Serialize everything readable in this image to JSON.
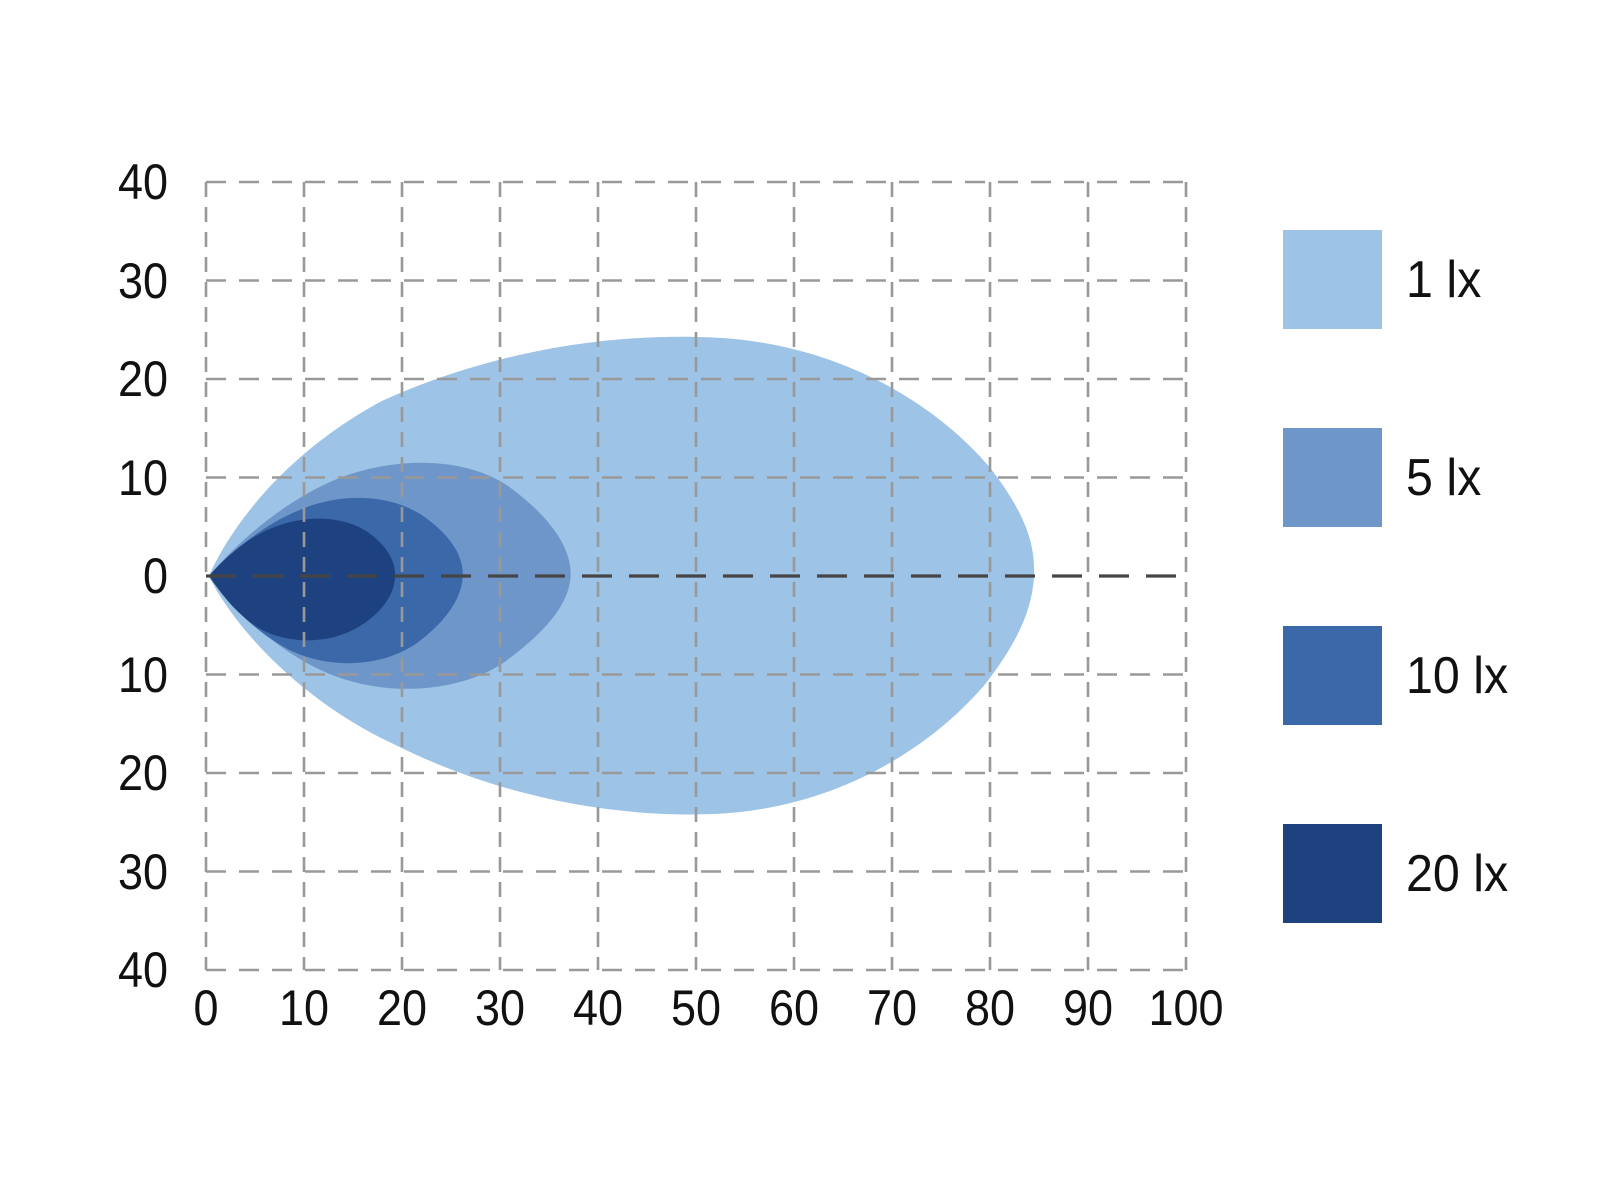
{
  "chart_data": {
    "type": "area",
    "subtype": "isolux-contour",
    "title": "",
    "xlabel": "",
    "ylabel": "",
    "x_range": [
      0,
      100
    ],
    "y_range": [
      -40,
      40
    ],
    "grid": {
      "visible": true,
      "style": "dashed",
      "color": "#999999",
      "zero_line_color": "#454545",
      "h_dash": "20 13",
      "v_dash": "15 10",
      "zero_dash": "30 17"
    },
    "x_ticks": [
      {
        "value": 0,
        "label": "0"
      },
      {
        "value": 10,
        "label": "10"
      },
      {
        "value": 20,
        "label": "20"
      },
      {
        "value": 30,
        "label": "30"
      },
      {
        "value": 40,
        "label": "40"
      },
      {
        "value": 50,
        "label": "50"
      },
      {
        "value": 60,
        "label": "60"
      },
      {
        "value": 70,
        "label": "70"
      },
      {
        "value": 80,
        "label": "80"
      },
      {
        "value": 90,
        "label": "90"
      },
      {
        "value": 100,
        "label": "100"
      }
    ],
    "y_ticks": [
      {
        "value": 40,
        "label": "40"
      },
      {
        "value": 30,
        "label": "30"
      },
      {
        "value": 20,
        "label": "20"
      },
      {
        "value": 10,
        "label": "10"
      },
      {
        "value": 0,
        "label": "0"
      },
      {
        "value": -10,
        "label": "10"
      },
      {
        "value": -20,
        "label": "20"
      },
      {
        "value": -30,
        "label": "30"
      },
      {
        "value": -40,
        "label": "40"
      }
    ],
    "series": [
      {
        "name": "1 lx",
        "color": "#9DC3E6",
        "extent": {
          "x_max": 84.5,
          "y_top": 24.2,
          "y_bottom": -24.1
        },
        "path": {
          "start": [
            0.3,
            0
          ],
          "curves": [
            [
              3,
              6,
              9,
              13,
              18,
              17.8
            ],
            [
              28,
              22.3,
              40,
              24.8,
              52,
              24.2
            ],
            [
              64,
              23.6,
              74,
              18,
              80,
              11
            ],
            [
              83.5,
              6.5,
              84.5,
              3.5,
              84.5,
              0.6
            ],
            [
              84.5,
              -3,
              83,
              -6.5,
              79.5,
              -11
            ],
            [
              73.5,
              -18,
              64,
              -23.3,
              53,
              -24.1
            ],
            [
              41,
              -24.8,
              29,
              -22,
              19,
              -17
            ],
            [
              10,
              -12.8,
              3,
              -5.5,
              0.3,
              0
            ]
          ]
        }
      },
      {
        "name": "5 lx",
        "color": "#6E96C9",
        "extent": {
          "x_max": 37.2,
          "y_top": 11.5,
          "y_bottom": -11.2
        },
        "path": {
          "start": [
            0.3,
            0
          ],
          "curves": [
            [
              3,
              3.2,
              7.5,
              7.3,
              13,
              9.7
            ],
            [
              19,
              12.2,
              26.5,
              12.2,
              31,
              9
            ],
            [
              34.8,
              6.2,
              37.2,
              3.2,
              37.2,
              0.2
            ],
            [
              37.2,
              -2.8,
              34.5,
              -5.8,
              30.5,
              -8.7
            ],
            [
              26,
              -11.8,
              18.5,
              -12.4,
              12.5,
              -9.9
            ],
            [
              7,
              -7.6,
              2.8,
              -3.2,
              0.3,
              0
            ]
          ]
        }
      },
      {
        "name": "10 lx",
        "color": "#3A68A9",
        "extent": {
          "x_max": 26.2,
          "y_top": 7.9,
          "y_bottom": -8.2
        },
        "path": {
          "start": [
            0.3,
            0
          ],
          "curves": [
            [
              2.5,
              2.3,
              5.5,
              5,
              9.3,
              6.6
            ],
            [
              13.8,
              8.6,
              19,
              8.3,
              22.3,
              6
            ],
            [
              24.8,
              4.2,
              26.2,
              2.2,
              26.2,
              0.2
            ],
            [
              26.2,
              -2,
              24.7,
              -4.4,
              21.8,
              -6.6
            ],
            [
              18.2,
              -9.3,
              12.8,
              -9.5,
              8.7,
              -7.6
            ],
            [
              4.9,
              -5.7,
              2.2,
              -2.7,
              0.3,
              0
            ]
          ]
        }
      },
      {
        "name": "20 lx",
        "color": "#1E4280",
        "extent": {
          "x_max": 19.3,
          "y_top": 5.6,
          "y_bottom": -6.1
        },
        "path": {
          "start": [
            0.3,
            0
          ],
          "curves": [
            [
              1.8,
              1.7,
              4,
              3.8,
              6.8,
              4.9
            ],
            [
              10.2,
              6.3,
              14.2,
              6.1,
              16.6,
              4.4
            ],
            [
              18.4,
              3.1,
              19.3,
              1.6,
              19.3,
              0.1
            ],
            [
              19.3,
              -1.7,
              18.2,
              -3.4,
              16,
              -4.9
            ],
            [
              13,
              -6.9,
              8.8,
              -7,
              5.8,
              -5.5
            ],
            [
              3.2,
              -4.1,
              1.5,
              -1.7,
              0.3,
              0
            ]
          ]
        }
      }
    ],
    "legend_position": "right"
  },
  "legend": {
    "items": [
      {
        "label": "1 lx",
        "color": "#9DC3E6"
      },
      {
        "label": "5 lx",
        "color": "#6E96C9"
      },
      {
        "label": "10 lx",
        "color": "#3A68A9"
      },
      {
        "label": "20 lx",
        "color": "#1E4280"
      }
    ]
  }
}
